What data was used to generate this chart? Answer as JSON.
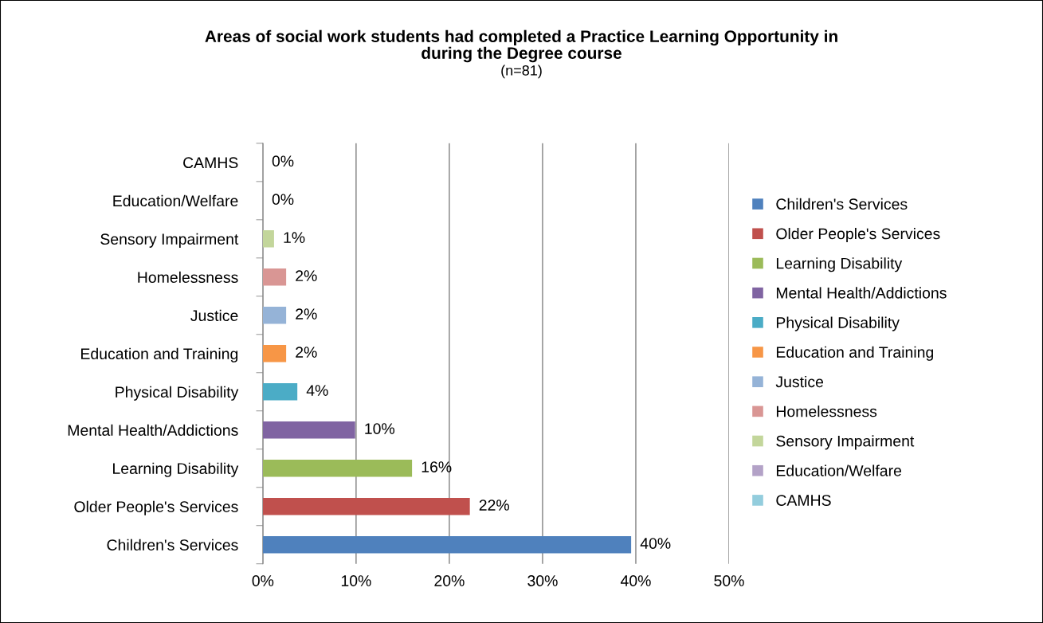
{
  "chart_data": {
    "type": "bar",
    "orientation": "horizontal",
    "title": "Areas of social work students had completed a Practice Learning Opportunity in\nduring the Degree course",
    "subtitle": "(n=81)",
    "categories": [
      "CAMHS",
      "Education/Welfare",
      "Sensory Impairment",
      "Homelessness",
      "Justice",
      "Education and Training",
      "Physical Disability",
      "Mental Health/Addictions",
      "Learning Disability",
      "Older People's Services",
      "Children's Services"
    ],
    "series": [
      {
        "name": "Children's Services",
        "color": "#4f81bd",
        "values": [
          null,
          null,
          null,
          null,
          null,
          null,
          null,
          null,
          null,
          null,
          39.5
        ],
        "value_labels": [
          null,
          null,
          null,
          null,
          null,
          null,
          null,
          null,
          null,
          null,
          "40%"
        ]
      },
      {
        "name": "Older People's Services",
        "color": "#c0504d",
        "values": [
          null,
          null,
          null,
          null,
          null,
          null,
          null,
          null,
          null,
          22.2,
          null
        ],
        "value_labels": [
          null,
          null,
          null,
          null,
          null,
          null,
          null,
          null,
          null,
          "22%",
          null
        ]
      },
      {
        "name": "Learning Disability",
        "color": "#9bbb59",
        "values": [
          null,
          null,
          null,
          null,
          null,
          null,
          null,
          null,
          16.0,
          null,
          null
        ],
        "value_labels": [
          null,
          null,
          null,
          null,
          null,
          null,
          null,
          null,
          "16%",
          null,
          null
        ]
      },
      {
        "name": "Mental Health/Addictions",
        "color": "#8064a2",
        "values": [
          null,
          null,
          null,
          null,
          null,
          null,
          null,
          9.9,
          null,
          null,
          null
        ],
        "value_labels": [
          null,
          null,
          null,
          null,
          null,
          null,
          null,
          "10%",
          null,
          null,
          null
        ]
      },
      {
        "name": "Physical Disability",
        "color": "#4bacc6",
        "values": [
          null,
          null,
          null,
          null,
          null,
          null,
          3.7,
          null,
          null,
          null,
          null
        ],
        "value_labels": [
          null,
          null,
          null,
          null,
          null,
          null,
          "4%",
          null,
          null,
          null,
          null
        ]
      },
      {
        "name": "Education and Training",
        "color": "#f79646",
        "values": [
          null,
          null,
          null,
          null,
          null,
          2.5,
          null,
          null,
          null,
          null,
          null
        ],
        "value_labels": [
          null,
          null,
          null,
          null,
          null,
          "2%",
          null,
          null,
          null,
          null,
          null
        ]
      },
      {
        "name": "Justice",
        "color": "#95b3d7",
        "values": [
          null,
          null,
          null,
          null,
          2.5,
          null,
          null,
          null,
          null,
          null,
          null
        ],
        "value_labels": [
          null,
          null,
          null,
          null,
          "2%",
          null,
          null,
          null,
          null,
          null,
          null
        ]
      },
      {
        "name": "Homelessness",
        "color": "#d99694",
        "values": [
          null,
          null,
          null,
          2.5,
          null,
          null,
          null,
          null,
          null,
          null,
          null
        ],
        "value_labels": [
          null,
          null,
          null,
          "2%",
          null,
          null,
          null,
          null,
          null,
          null,
          null
        ]
      },
      {
        "name": "Sensory Impairment",
        "color": "#c3d69b",
        "values": [
          null,
          null,
          1.2,
          null,
          null,
          null,
          null,
          null,
          null,
          null,
          null
        ],
        "value_labels": [
          null,
          null,
          "1%",
          null,
          null,
          null,
          null,
          null,
          null,
          null,
          null
        ]
      },
      {
        "name": "Education/Welfare",
        "color": "#b3a2c7",
        "values": [
          null,
          0,
          null,
          null,
          null,
          null,
          null,
          null,
          null,
          null,
          null
        ],
        "value_labels": [
          null,
          "0%",
          null,
          null,
          null,
          null,
          null,
          null,
          null,
          null,
          null
        ]
      },
      {
        "name": "CAMHS",
        "color": "#93cddd",
        "values": [
          0,
          null,
          null,
          null,
          null,
          null,
          null,
          null,
          null,
          null,
          null
        ],
        "value_labels": [
          "0%",
          null,
          null,
          null,
          null,
          null,
          null,
          null,
          null,
          null,
          null
        ]
      }
    ],
    "xlim": [
      0,
      50
    ],
    "xticks": [
      {
        "value": 0,
        "label": "0%"
      },
      {
        "value": 10,
        "label": "10%"
      },
      {
        "value": 20,
        "label": "20%"
      },
      {
        "value": 30,
        "label": "30%"
      },
      {
        "value": 40,
        "label": "40%"
      },
      {
        "value": 50,
        "label": "50%"
      }
    ],
    "grid": "x",
    "legend": "right"
  }
}
